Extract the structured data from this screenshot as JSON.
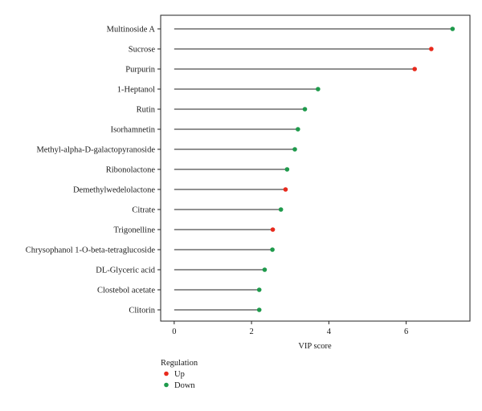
{
  "chart_data": {
    "type": "lollipop",
    "title": "",
    "xlabel": "VIP score",
    "ylabel": "",
    "xlim": [
      -0.35,
      7.65
    ],
    "xticks": [
      0,
      2,
      4,
      6
    ],
    "grid": false,
    "legend": {
      "title": "Regulation",
      "placement": "bottom-left",
      "entries": [
        {
          "label": "Up",
          "color": "#e8291c"
        },
        {
          "label": "Down",
          "color": "#1e9a4b"
        }
      ]
    },
    "points": [
      {
        "name": "Multinoside A",
        "value": 7.2,
        "regulation": "Down"
      },
      {
        "name": "Sucrose",
        "value": 6.65,
        "regulation": "Up"
      },
      {
        "name": "Purpurin",
        "value": 6.22,
        "regulation": "Up"
      },
      {
        "name": "1-Heptanol",
        "value": 3.72,
        "regulation": "Down"
      },
      {
        "name": "Rutin",
        "value": 3.38,
        "regulation": "Down"
      },
      {
        "name": "Isorhamnetin",
        "value": 3.2,
        "regulation": "Down"
      },
      {
        "name": "Methyl-alpha-D-galactopyranoside",
        "value": 3.12,
        "regulation": "Down"
      },
      {
        "name": "Ribonolactone",
        "value": 2.92,
        "regulation": "Down"
      },
      {
        "name": "Demethylwedelolactone",
        "value": 2.88,
        "regulation": "Up"
      },
      {
        "name": "Citrate",
        "value": 2.76,
        "regulation": "Down"
      },
      {
        "name": "Trigonelline",
        "value": 2.55,
        "regulation": "Up"
      },
      {
        "name": "Chrysophanol 1-O-beta-tetraglucoside",
        "value": 2.54,
        "regulation": "Down"
      },
      {
        "name": "DL-Glyceric acid",
        "value": 2.34,
        "regulation": "Down"
      },
      {
        "name": "Clostebol acetate",
        "value": 2.2,
        "regulation": "Down"
      },
      {
        "name": "Clitorin",
        "value": 2.2,
        "regulation": "Down"
      }
    ]
  }
}
